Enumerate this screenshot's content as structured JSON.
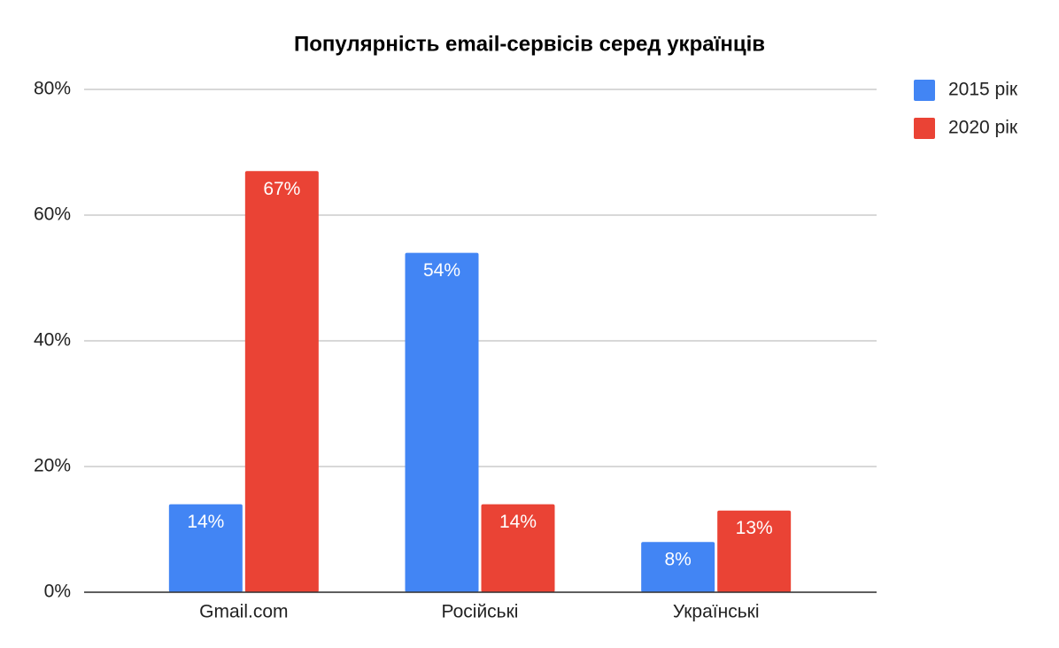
{
  "chart_data": {
    "type": "bar",
    "title": "Популярність email-сервісів серед українців",
    "categories": [
      "Gmail.com",
      "Російські",
      "Українські"
    ],
    "series": [
      {
        "name": "2015 рік",
        "color": "#4285f4",
        "values": [
          14,
          54,
          8
        ],
        "value_labels": [
          "14%",
          "54%",
          "8%"
        ]
      },
      {
        "name": "2020 рік",
        "color": "#ea4335",
        "values": [
          67,
          14,
          13
        ],
        "value_labels": [
          "67%",
          "14%",
          "13%"
        ]
      }
    ],
    "ylim": [
      0,
      80
    ],
    "yticks": [
      {
        "value": 0,
        "label": "0%"
      },
      {
        "value": 20,
        "label": "20%"
      },
      {
        "value": 40,
        "label": "40%"
      },
      {
        "value": 60,
        "label": "60%"
      },
      {
        "value": 80,
        "label": "80%"
      }
    ],
    "grid": true,
    "legend": "right"
  }
}
